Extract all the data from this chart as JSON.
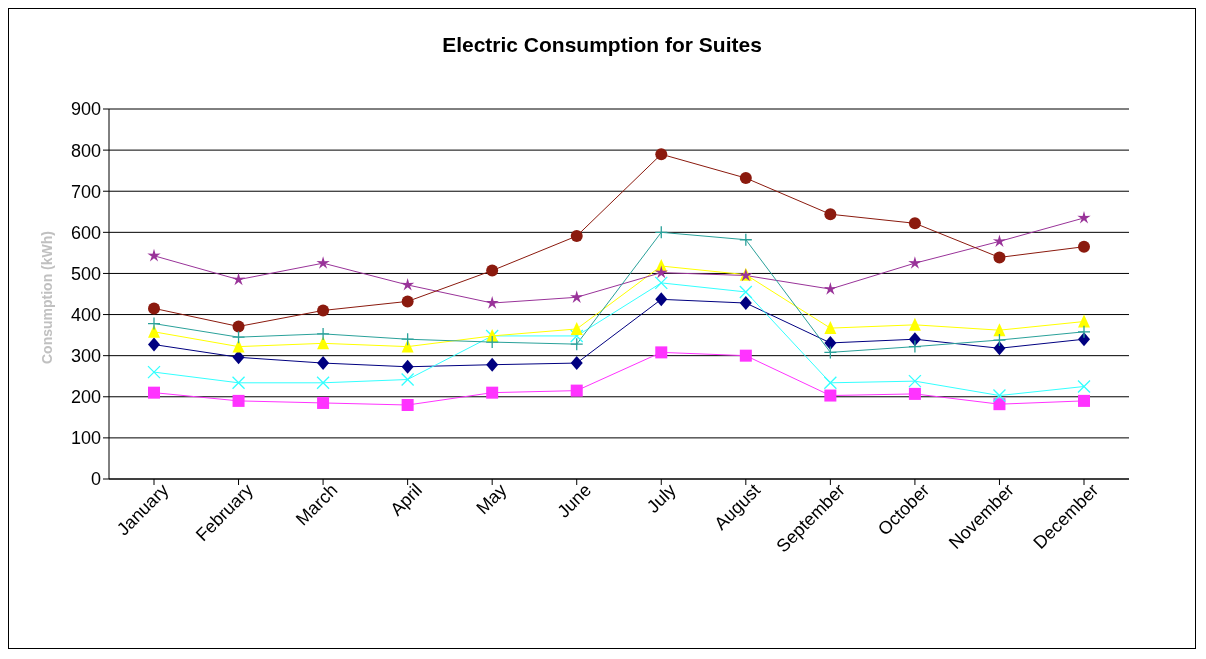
{
  "chart_data": {
    "type": "line",
    "title": "Electric Consumption for Suites",
    "ylabel": "Consumption (kWh)",
    "categories": [
      "January",
      "February",
      "March",
      "April",
      "May",
      "June",
      "July",
      "August",
      "September",
      "October",
      "November",
      "December"
    ],
    "ylim": [
      0,
      900
    ],
    "yticks": [
      0,
      100,
      200,
      300,
      400,
      500,
      600,
      700,
      800,
      900
    ],
    "grid": "y",
    "legend": false,
    "series": [
      {
        "color": "#000080",
        "marker": "diamond",
        "values": [
          327,
          296,
          282,
          273,
          278,
          282,
          437,
          428,
          331,
          340,
          318,
          340
        ]
      },
      {
        "color": "#ff33ff",
        "marker": "square",
        "values": [
          210,
          190,
          185,
          180,
          210,
          215,
          308,
          300,
          203,
          207,
          182,
          190
        ]
      },
      {
        "color": "#33ffff",
        "marker": "cross",
        "values": [
          260,
          234,
          234,
          242,
          348,
          348,
          477,
          455,
          234,
          238,
          203,
          225
        ]
      },
      {
        "color": "#ffff00",
        "marker": "triangle",
        "values": [
          358,
          322,
          330,
          322,
          348,
          365,
          518,
          497,
          367,
          375,
          362,
          383
        ]
      },
      {
        "color": "#993399",
        "marker": "star",
        "values": [
          543,
          485,
          525,
          472,
          428,
          442,
          502,
          495,
          462,
          525,
          578,
          635
        ]
      },
      {
        "color": "#8b1a0e",
        "marker": "circle",
        "values": [
          415,
          371,
          410,
          432,
          507,
          591,
          790,
          732,
          644,
          622,
          539,
          565
        ]
      },
      {
        "color": "#2aa19a",
        "marker": "cross",
        "values": [
          378,
          345,
          353,
          340,
          333,
          328,
          600,
          582,
          308,
          322,
          338,
          358
        ]
      }
    ]
  }
}
